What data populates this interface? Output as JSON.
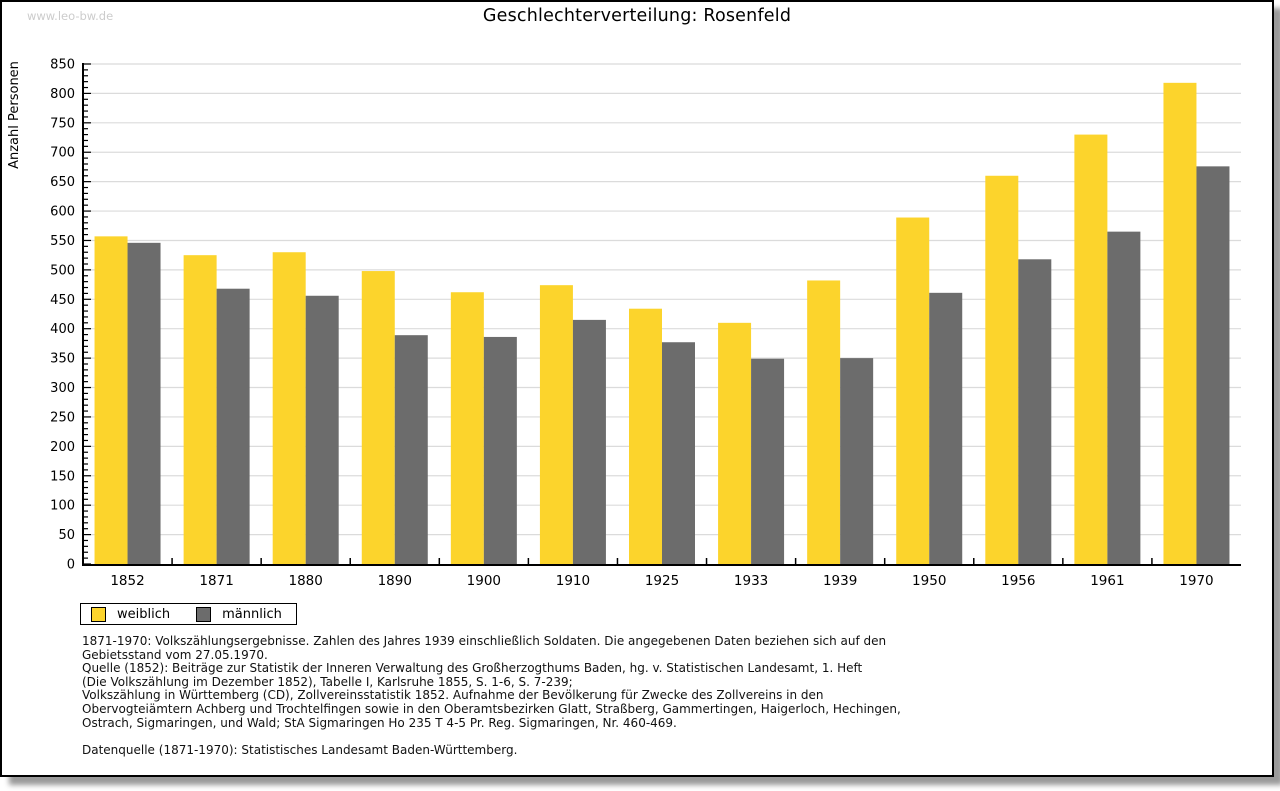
{
  "watermark": "www.leo-bw.de",
  "chart_data": {
    "type": "bar",
    "title": "Geschlechterverteilung: Rosenfeld",
    "ylabel": "Anzahl Personen",
    "xlabel": "",
    "categories": [
      "1852",
      "1871",
      "1880",
      "1890",
      "1900",
      "1910",
      "1925",
      "1933",
      "1939",
      "1950",
      "1956",
      "1961",
      "1970"
    ],
    "series": [
      {
        "name": "weiblich",
        "color": "#FCD42C",
        "values": [
          557,
          525,
          530,
          498,
          462,
          474,
          434,
          410,
          482,
          589,
          660,
          730,
          818
        ]
      },
      {
        "name": "männlich",
        "color": "#6C6C6C",
        "values": [
          546,
          468,
          456,
          389,
          386,
          415,
          377,
          349,
          350,
          461,
          518,
          565,
          676
        ]
      }
    ],
    "ylim": [
      0,
      850
    ],
    "ytick_major": 50,
    "ytick_minor": 10,
    "grid": true,
    "gridline_color": "#dbdbdb",
    "legend_position": "bottom-left"
  },
  "footnotes": {
    "lines": [
      "1871-1970: Volkszählungsergebnisse. Zahlen des Jahres 1939 einschließlich Soldaten. Die angegebenen Daten beziehen sich auf den",
      "Gebietsstand vom 27.05.1970.",
      "Quelle (1852): Beiträge zur Statistik der Inneren Verwaltung des Großherzogthums Baden, hg. v. Statistischen Landesamt, 1. Heft",
      "(Die Volkszählung im Dezember 1852), Tabelle I, Karlsruhe 1855, S. 1-6, S. 7-239;",
      "Volkszählung in Württemberg (CD), Zollvereinsstatistik 1852. Aufnahme der Bevölkerung für Zwecke des Zollvereins in den",
      "Obervogteiämtern Achberg und Trochtelfingen sowie in den Oberamtsbezirken Glatt, Straßberg, Gammertingen, Haigerloch, Hechingen,",
      "Ostrach, Sigmaringen, und Wald; StA Sigmaringen Ho 235 T 4-5 Pr. Reg. Sigmaringen, Nr. 460-469.",
      "",
      "Datenquelle (1871-1970): Statistisches Landesamt Baden-Württemberg."
    ]
  }
}
